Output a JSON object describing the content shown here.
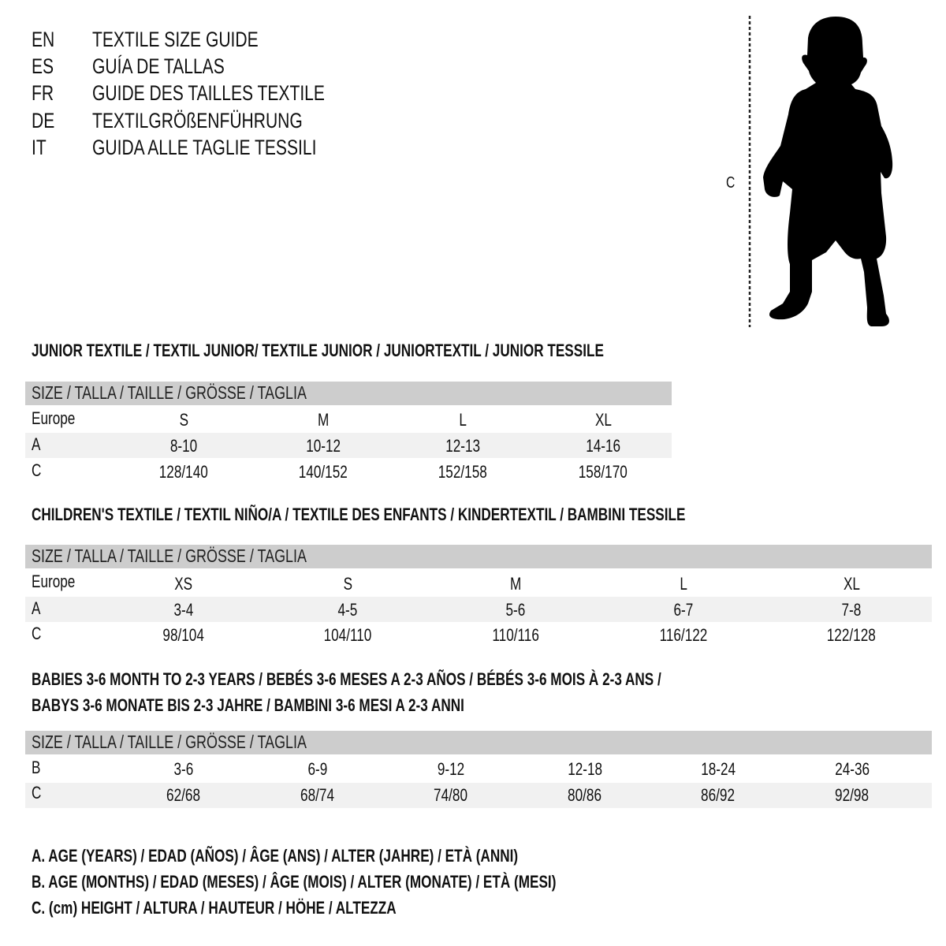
{
  "guide_titles": [
    {
      "code": "EN",
      "text": "TEXTILE SIZE GUIDE"
    },
    {
      "code": "ES",
      "text": "GUÍA DE TALLAS"
    },
    {
      "code": "FR",
      "text": "GUIDE DES TAILLES TEXTILE"
    },
    {
      "code": "DE",
      "text": "TEXTILGRÖßENFÜHRUNG"
    },
    {
      "code": "IT",
      "text": "GUIDA ALLE TAGLIE TESSILI"
    }
  ],
  "figure": {
    "height_label": "C",
    "icon": "child-silhouette-icon"
  },
  "size_header": "SIZE / TALLA / TAILLE / GRÖSSE / TAGLIA",
  "junior": {
    "title": "JUNIOR TEXTILE / TEXTIL JUNIOR/ TEXTILE JUNIOR / JUNIORTEXTIL / JUNIOR TESSILE",
    "rows": [
      {
        "label": "Europe",
        "values": [
          "S",
          "M",
          "L",
          "XL"
        ]
      },
      {
        "label": "A",
        "values": [
          "8-10",
          "10-12",
          "12-13",
          "14-16"
        ]
      },
      {
        "label": "C",
        "values": [
          "128/140",
          "140/152",
          "152/158",
          "158/170"
        ]
      }
    ]
  },
  "children": {
    "title": "CHILDREN'S TEXTILE / TEXTIL NIÑO/A / TEXTILE DES ENFANTS / KINDERTEXTIL / BAMBINI TESSILE",
    "rows": [
      {
        "label": "Europe",
        "values": [
          "XS",
          "S",
          "M",
          "L",
          "XL"
        ]
      },
      {
        "label": "A",
        "values": [
          "3-4",
          "4-5",
          "5-6",
          "6-7",
          "7-8"
        ]
      },
      {
        "label": "C",
        "values": [
          "98/104",
          "104/110",
          "110/116",
          "116/122",
          "122/128"
        ]
      }
    ]
  },
  "babies": {
    "title_line1": "BABIES 3-6 MONTH TO 2-3 YEARS / BEBÉS 3-6 MESES A 2-3 AÑOS / BÉBÉS 3-6 MOIS À 2-3 ANS /",
    "title_line2": "BABYS 3-6 MONATE BIS 2-3 JAHRE / BAMBINI 3-6 MESI A 2-3 ANNI",
    "rows": [
      {
        "label": "B",
        "values": [
          "3-6",
          "6-9",
          "9-12",
          "12-18",
          "18-24",
          "24-36"
        ]
      },
      {
        "label": "C",
        "values": [
          "62/68",
          "68/74",
          "74/80",
          "80/86",
          "86/92",
          "92/98"
        ]
      }
    ]
  },
  "legend": [
    "A. AGE (YEARS) / EDAD (AÑOS) / ÂGE (ANS) / ALTER (JAHRE) / ETÀ (ANNI)",
    "B. AGE (MONTHS) / EDAD (MESES) / ÂGE (MOIS) / ALTER (MONATE) / ETÀ (MESI)",
    "C. (cm) HEIGHT / ALTURA / HAUTEUR / HÖHE / ALTEZZA"
  ],
  "colors": {
    "header_band": "#cdcdcd",
    "shaded_row": "#f1f1f1",
    "text": "#111111"
  }
}
